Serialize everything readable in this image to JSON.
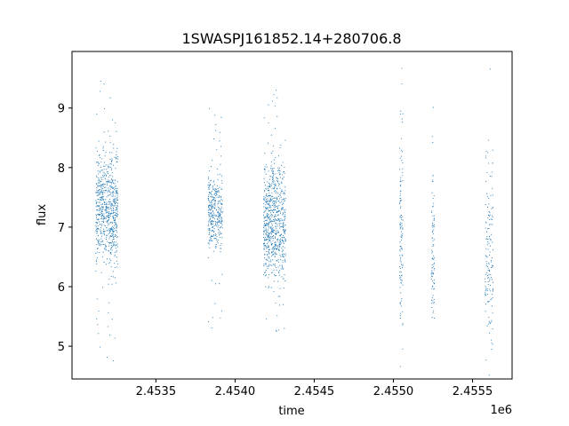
{
  "chart_data": {
    "type": "scatter",
    "title": "1SWASPJ161852.14+280706.8",
    "xlabel": "time",
    "ylabel": "flux",
    "x_offset_label": "1e6",
    "x_ticks": [
      2.4535,
      2.454,
      2.4545,
      2.455,
      2.4555
    ],
    "x_tick_labels": [
      "2.4535",
      "2.4540",
      "2.4545",
      "2.4550",
      "2.4555"
    ],
    "y_ticks": [
      5,
      6,
      7,
      8,
      9
    ],
    "y_tick_labels": [
      "5",
      "6",
      "7",
      "8",
      "9"
    ],
    "xlim": [
      2.45297,
      2.45575
    ],
    "ylim": [
      4.45,
      9.95
    ],
    "grid": false,
    "legend": "none",
    "point_color": "#1f77b4",
    "clusters": [
      {
        "x_range": [
          2.45312,
          2.45326
        ],
        "y_center": 7.3,
        "y_spread": 0.45,
        "density": 700,
        "outlier_range": [
          4.7,
          9.6
        ]
      },
      {
        "x_range": [
          2.45383,
          2.45392
        ],
        "y_center": 7.25,
        "y_spread": 0.3,
        "density": 350,
        "outlier_range": [
          4.85,
          9.0
        ]
      },
      {
        "x_range": [
          2.45418,
          2.45432
        ],
        "y_center": 7.1,
        "y_spread": 0.5,
        "density": 750,
        "outlier_range": [
          5.2,
          9.35
        ]
      },
      {
        "x_range": [
          2.45504,
          2.45506
        ],
        "y_center": 6.8,
        "y_spread": 0.8,
        "density": 120,
        "outlier_range": [
          5.2,
          9.7
        ]
      },
      {
        "x_range": [
          2.45524,
          2.45526
        ],
        "y_center": 6.8,
        "y_spread": 0.8,
        "density": 90,
        "outlier_range": [
          5.5,
          9.7
        ]
      },
      {
        "x_range": [
          2.45558,
          2.45563
        ],
        "y_center": 6.6,
        "y_spread": 0.8,
        "density": 150,
        "outlier_range": [
          4.9,
          9.7
        ]
      }
    ]
  }
}
